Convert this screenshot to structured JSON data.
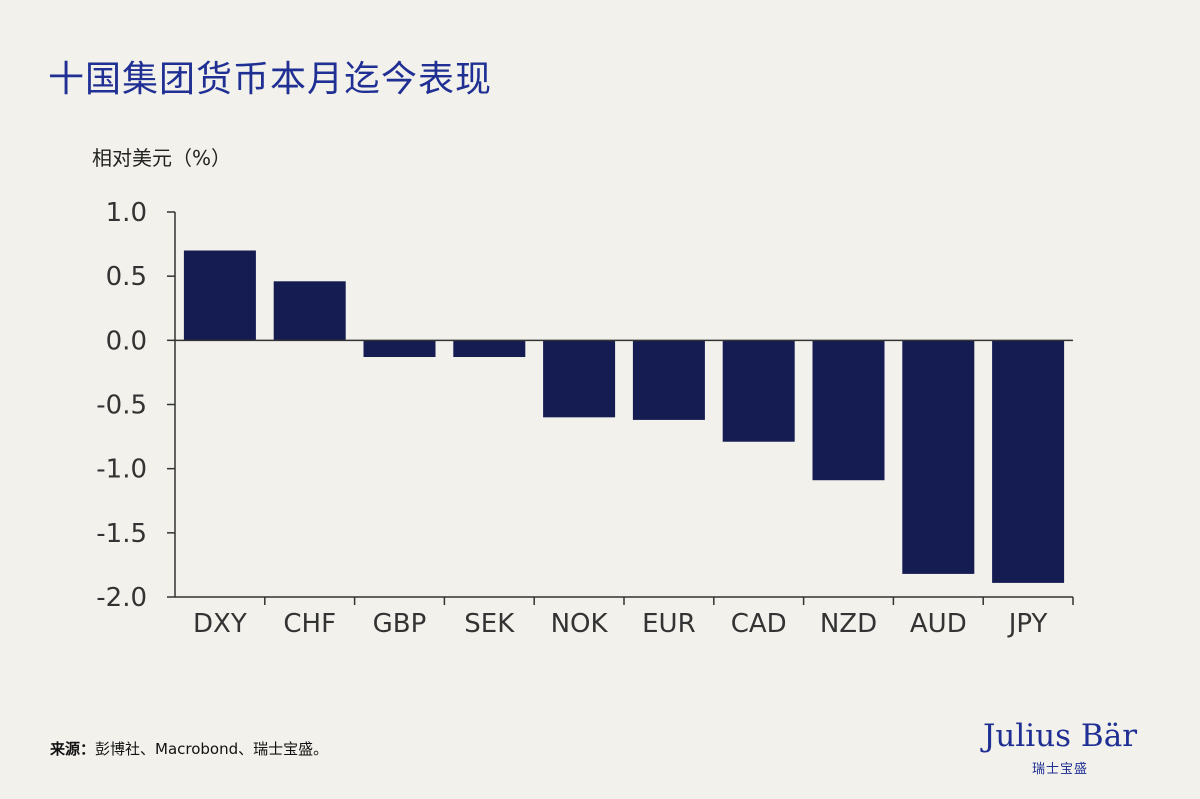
{
  "title": "十国集团货币本月迄今表现",
  "source_label": "来源：",
  "source_text": "彭博社、Macrobond、瑞士宝盛。",
  "logo": {
    "name": "Julius Bär",
    "sub": "瑞士宝盛"
  },
  "colors": {
    "bar": "#141c52",
    "title": "#1f2f93",
    "background": "#f2f1eb"
  },
  "chart_data": {
    "type": "bar",
    "title": "十国集团货币本月迄今表现",
    "ylabel": "相对美元（%）",
    "xlabel": "",
    "categories": [
      "DXY",
      "CHF",
      "GBP",
      "SEK",
      "NOK",
      "EUR",
      "CAD",
      "NZD",
      "AUD",
      "JPY"
    ],
    "values": [
      0.7,
      0.46,
      -0.13,
      -0.13,
      -0.6,
      -0.62,
      -0.79,
      -1.09,
      -1.82,
      -1.89
    ],
    "ylim": [
      -2.0,
      1.0
    ],
    "yticks": [
      "1.0",
      "0.5",
      "0.0",
      "-0.5",
      "-1.0",
      "-1.5",
      "-2.0"
    ],
    "grid": false,
    "legend": "none"
  }
}
